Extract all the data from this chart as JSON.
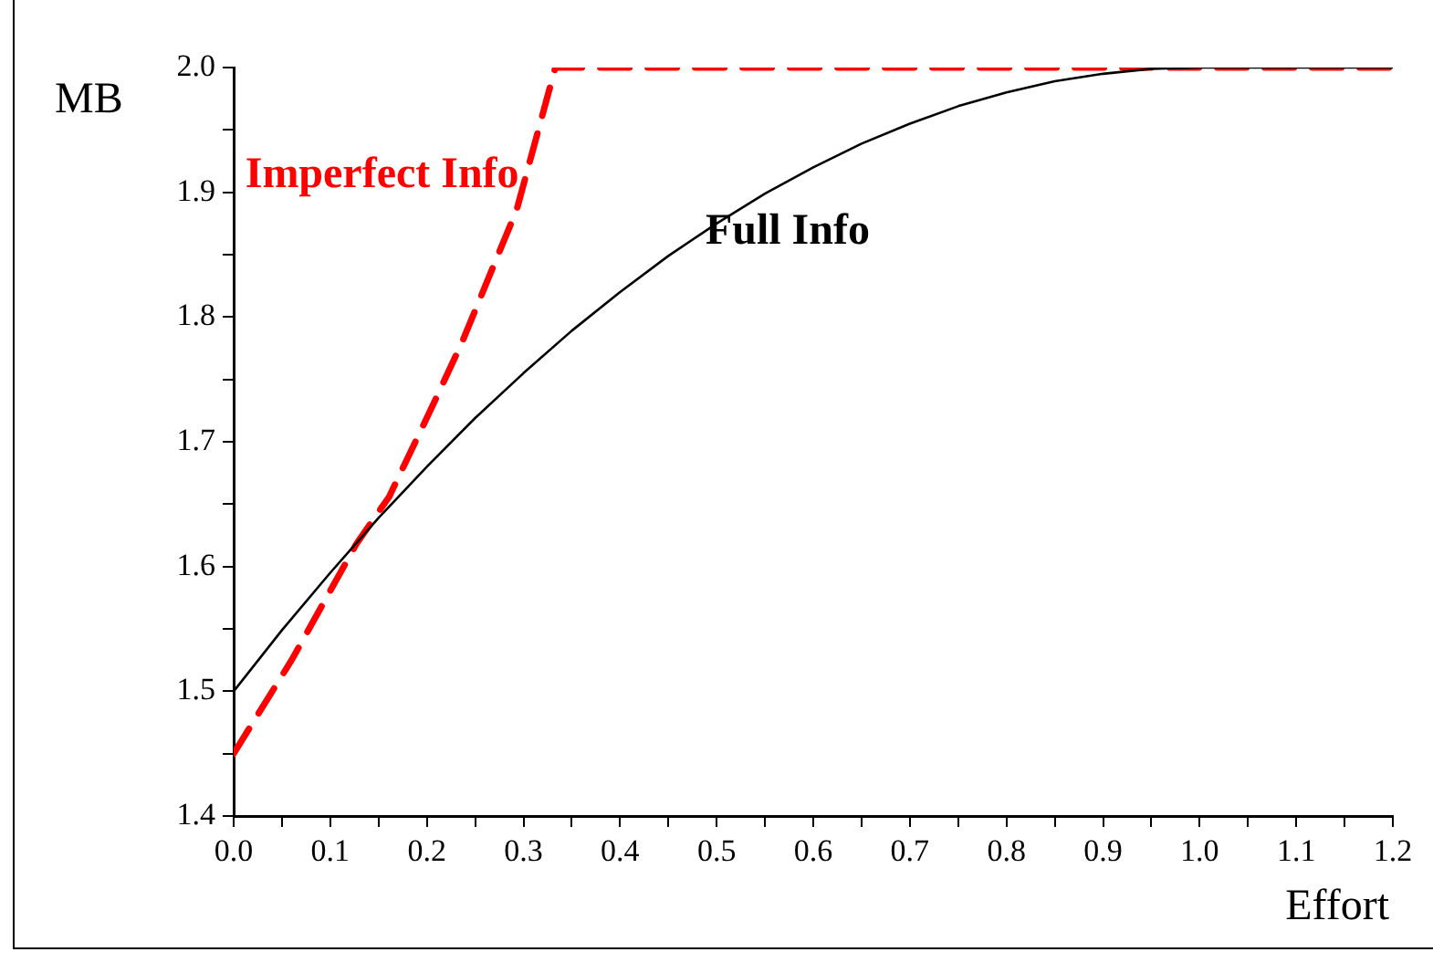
{
  "chart_data": {
    "type": "line",
    "xlabel": "Effort",
    "ylabel": "MB",
    "series": [
      {
        "name": "Full Info",
        "color": "#000000",
        "line_style": "solid",
        "x": [
          0,
          0.05,
          0.1,
          0.15,
          0.2,
          0.25,
          0.3,
          0.35,
          0.4,
          0.45,
          0.5,
          0.55,
          0.6,
          0.65,
          0.7,
          0.75,
          0.8,
          0.85,
          0.9,
          0.95,
          1.0,
          1.1,
          1.2
        ],
        "values": [
          1.5,
          1.549,
          1.595,
          1.639,
          1.68,
          1.719,
          1.755,
          1.789,
          1.82,
          1.849,
          1.875,
          1.899,
          1.92,
          1.939,
          1.955,
          1.969,
          1.98,
          1.989,
          1.995,
          1.999,
          2.0,
          2.0,
          2.0
        ]
      },
      {
        "name": "Imperfect Info",
        "color": "#ff0000",
        "line_style": "dashed",
        "x": [
          0,
          0.06,
          0.127,
          0.161,
          0.206,
          0.236,
          0.293,
          0.333,
          1.2
        ],
        "values": [
          1.45,
          1.525,
          1.618,
          1.656,
          1.729,
          1.779,
          1.886,
          2.0,
          2.0
        ]
      }
    ],
    "xlim": [
      0,
      1.2
    ],
    "ylim": [
      1.4,
      2.0
    ],
    "xticks": [
      {
        "value": 0,
        "label": "0.0"
      },
      {
        "value": 0.05,
        "label": null
      },
      0.1,
      {
        "value": 0.15,
        "label": null
      },
      0.2,
      {
        "value": 0.25,
        "label": null
      },
      0.3,
      {
        "value": 0.35,
        "label": null
      },
      0.4,
      {
        "value": 0.45,
        "label": null
      },
      0.5,
      {
        "value": 0.55,
        "label": null
      },
      0.6,
      {
        "value": 0.65,
        "label": null
      },
      0.7,
      {
        "value": 0.75,
        "label": null
      },
      0.8,
      {
        "value": 0.85,
        "label": null
      },
      0.9,
      {
        "value": 0.95,
        "label": null
      },
      {
        "value": 1,
        "label": "1.0"
      },
      {
        "value": 1.05,
        "label": null
      },
      1.1,
      {
        "value": 1.15,
        "label": null
      },
      1.2
    ],
    "yticks": [
      1.4,
      {
        "value": 1.45,
        "label": null
      },
      1.5,
      {
        "value": 1.55,
        "label": null
      },
      1.6,
      {
        "value": 1.65,
        "label": null
      },
      1.7,
      {
        "value": 1.75,
        "label": null
      },
      1.8,
      {
        "value": 1.85,
        "label": null
      },
      1.9,
      {
        "value": 1.95,
        "label": null
      },
      {
        "value": 2,
        "label": "2.0"
      }
    ],
    "grid": false,
    "legend": false,
    "marker": "none"
  }
}
